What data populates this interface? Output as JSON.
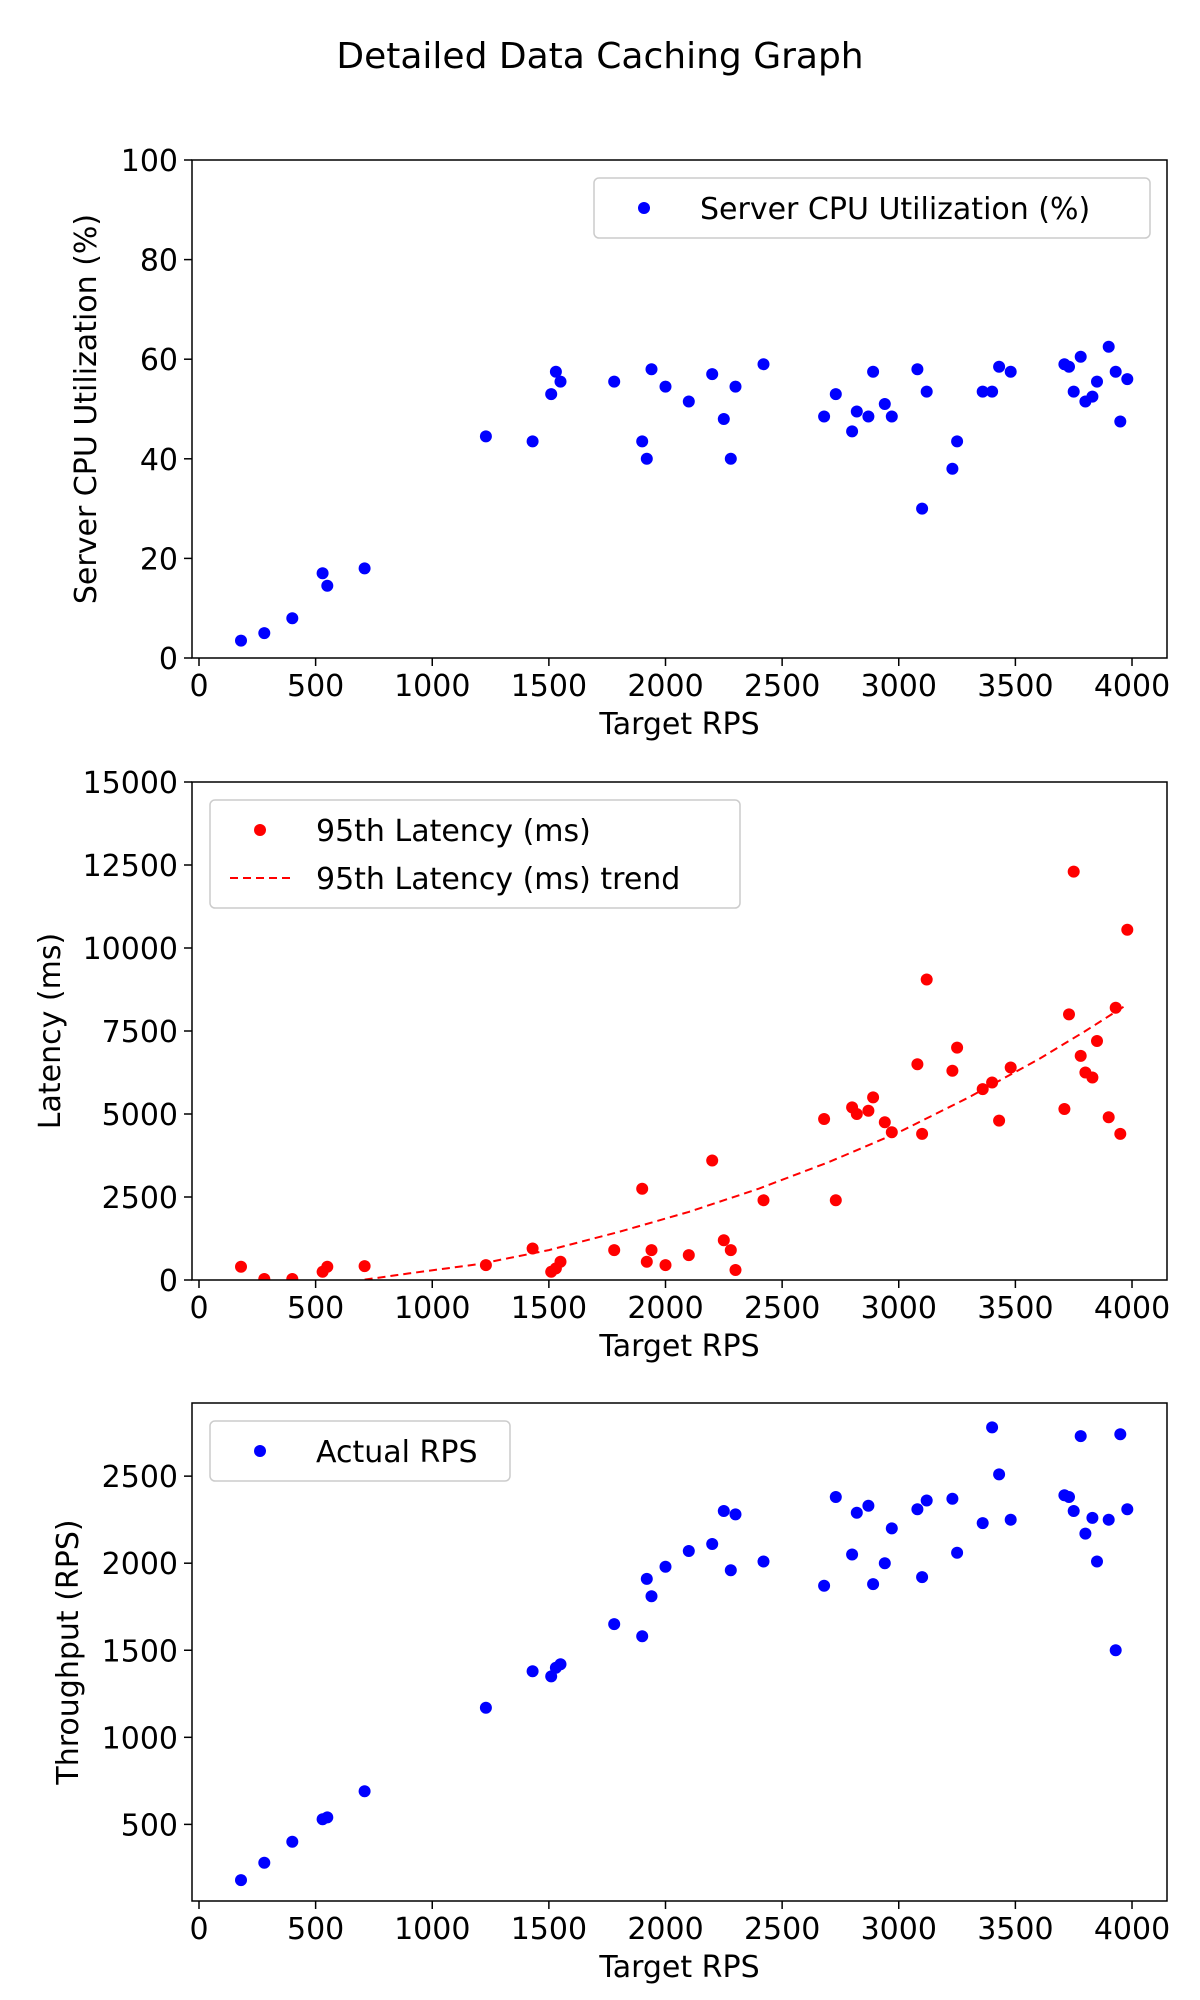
{
  "title": "Detailed Data Caching Graph",
  "chart_data": [
    {
      "type": "scatter",
      "xlabel": "Target RPS",
      "ylabel": "Server CPU Utilization (%)",
      "xlim": [
        -30,
        4150
      ],
      "ylim": [
        0,
        100
      ],
      "xticks": [
        0,
        500,
        1000,
        1500,
        2000,
        2500,
        3000,
        3500,
        4000
      ],
      "yticks": [
        0,
        20,
        40,
        60,
        80,
        100
      ],
      "grid": false,
      "legend": "upper right",
      "series": [
        {
          "name": "Server CPU Utilization (%)",
          "color": "#0000ff",
          "style": "points",
          "points": [
            [
              180,
              3.5
            ],
            [
              280,
              5
            ],
            [
              400,
              8
            ],
            [
              530,
              17
            ],
            [
              550,
              14.5
            ],
            [
              710,
              18
            ],
            [
              1230,
              44.5
            ],
            [
              1430,
              43.5
            ],
            [
              1510,
              53
            ],
            [
              1530,
              57.5
            ],
            [
              1550,
              55.5
            ],
            [
              1780,
              55.5
            ],
            [
              1900,
              43.5
            ],
            [
              1920,
              40
            ],
            [
              1940,
              58
            ],
            [
              2000,
              54.5
            ],
            [
              2100,
              51.5
            ],
            [
              2200,
              57
            ],
            [
              2250,
              48
            ],
            [
              2280,
              40
            ],
            [
              2300,
              54.5
            ],
            [
              2420,
              59
            ],
            [
              2680,
              48.5
            ],
            [
              2730,
              53
            ],
            [
              2800,
              45.5
            ],
            [
              2820,
              49.5
            ],
            [
              2870,
              48.5
            ],
            [
              2890,
              57.5
            ],
            [
              2940,
              51
            ],
            [
              2970,
              48.5
            ],
            [
              3080,
              58
            ],
            [
              3100,
              30
            ],
            [
              3120,
              53.5
            ],
            [
              3230,
              38
            ],
            [
              3250,
              43.5
            ],
            [
              3360,
              53.5
            ],
            [
              3400,
              53.5
            ],
            [
              3430,
              58.5
            ],
            [
              3480,
              57.5
            ],
            [
              3710,
              59
            ],
            [
              3730,
              58.5
            ],
            [
              3750,
              53.5
            ],
            [
              3780,
              60.5
            ],
            [
              3800,
              51.5
            ],
            [
              3830,
              52.5
            ],
            [
              3850,
              55.5
            ],
            [
              3900,
              62.5
            ],
            [
              3930,
              57.5
            ],
            [
              3950,
              47.5
            ],
            [
              3980,
              56
            ]
          ]
        }
      ]
    },
    {
      "type": "scatter",
      "xlabel": "Target RPS",
      "ylabel": "Latency (ms)",
      "xlim": [
        -30,
        4150
      ],
      "ylim": [
        0,
        15000
      ],
      "xticks": [
        0,
        500,
        1000,
        1500,
        2000,
        2500,
        3000,
        3500,
        4000
      ],
      "yticks": [
        0,
        2500,
        5000,
        7500,
        10000,
        12500,
        15000
      ],
      "grid": false,
      "legend": "upper left",
      "series": [
        {
          "name": "95th Latency (ms)",
          "color": "#ff0000",
          "style": "points",
          "points": [
            [
              180,
              400
            ],
            [
              280,
              30
            ],
            [
              400,
              30
            ],
            [
              530,
              250
            ],
            [
              550,
              400
            ],
            [
              710,
              420
            ],
            [
              1230,
              450
            ],
            [
              1430,
              950
            ],
            [
              1510,
              250
            ],
            [
              1530,
              350
            ],
            [
              1550,
              550
            ],
            [
              1780,
              900
            ],
            [
              1900,
              2750
            ],
            [
              1920,
              550
            ],
            [
              1940,
              900
            ],
            [
              2000,
              450
            ],
            [
              2100,
              750
            ],
            [
              2200,
              3600
            ],
            [
              2250,
              1200
            ],
            [
              2280,
              900
            ],
            [
              2300,
              300
            ],
            [
              2420,
              2400
            ],
            [
              2680,
              4850
            ],
            [
              2730,
              2400
            ],
            [
              2800,
              5200
            ],
            [
              2820,
              5000
            ],
            [
              2870,
              5100
            ],
            [
              2890,
              5500
            ],
            [
              2940,
              4750
            ],
            [
              2970,
              4450
            ],
            [
              3080,
              6500
            ],
            [
              3100,
              4400
            ],
            [
              3120,
              9050
            ],
            [
              3230,
              6300
            ],
            [
              3250,
              7000
            ],
            [
              3360,
              5750
            ],
            [
              3400,
              5950
            ],
            [
              3430,
              4800
            ],
            [
              3480,
              6400
            ],
            [
              3710,
              5150
            ],
            [
              3730,
              8000
            ],
            [
              3750,
              12300
            ],
            [
              3780,
              6750
            ],
            [
              3800,
              6250
            ],
            [
              3830,
              6100
            ],
            [
              3850,
              7200
            ],
            [
              3900,
              4900
            ],
            [
              3930,
              8200
            ],
            [
              3950,
              4400
            ],
            [
              3980,
              10550
            ]
          ]
        },
        {
          "name": "95th Latency (ms) trend",
          "color": "#ff0000",
          "style": "dashed-line",
          "points": [
            [
              600,
              -100
            ],
            [
              900,
              200
            ],
            [
              1200,
              480
            ],
            [
              1500,
              900
            ],
            [
              1800,
              1450
            ],
            [
              2100,
              2050
            ],
            [
              2400,
              2750
            ],
            [
              2700,
              3550
            ],
            [
              3000,
              4450
            ],
            [
              3300,
              5500
            ],
            [
              3600,
              6650
            ],
            [
              3800,
              7500
            ],
            [
              3980,
              8300
            ]
          ]
        }
      ]
    },
    {
      "type": "scatter",
      "xlabel": "Target RPS",
      "ylabel": "Throughput (RPS)",
      "xlim": [
        -30,
        4150
      ],
      "ylim": [
        60,
        2920
      ],
      "xticks": [
        0,
        500,
        1000,
        1500,
        2000,
        2500,
        3000,
        3500,
        4000
      ],
      "yticks": [
        500,
        1000,
        1500,
        2000,
        2500
      ],
      "grid": false,
      "legend": "upper left",
      "series": [
        {
          "name": "Actual RPS",
          "color": "#0000ff",
          "style": "points",
          "points": [
            [
              180,
              180
            ],
            [
              280,
              280
            ],
            [
              400,
              400
            ],
            [
              530,
              530
            ],
            [
              550,
              540
            ],
            [
              710,
              690
            ],
            [
              1230,
              1170
            ],
            [
              1430,
              1380
            ],
            [
              1510,
              1350
            ],
            [
              1530,
              1400
            ],
            [
              1550,
              1420
            ],
            [
              1780,
              1650
            ],
            [
              1900,
              1580
            ],
            [
              1920,
              1910
            ],
            [
              1940,
              1810
            ],
            [
              2000,
              1980
            ],
            [
              2100,
              2070
            ],
            [
              2200,
              2110
            ],
            [
              2250,
              2300
            ],
            [
              2280,
              1960
            ],
            [
              2300,
              2280
            ],
            [
              2420,
              2010
            ],
            [
              2680,
              1870
            ],
            [
              2730,
              2380
            ],
            [
              2800,
              2050
            ],
            [
              2820,
              2290
            ],
            [
              2870,
              2330
            ],
            [
              2890,
              1880
            ],
            [
              2940,
              2000
            ],
            [
              2970,
              2200
            ],
            [
              3080,
              2310
            ],
            [
              3100,
              1920
            ],
            [
              3120,
              2360
            ],
            [
              3230,
              2370
            ],
            [
              3250,
              2060
            ],
            [
              3360,
              2230
            ],
            [
              3400,
              2780
            ],
            [
              3430,
              2510
            ],
            [
              3480,
              2250
            ],
            [
              3710,
              2390
            ],
            [
              3730,
              2380
            ],
            [
              3750,
              2300
            ],
            [
              3780,
              2730
            ],
            [
              3800,
              2170
            ],
            [
              3830,
              2260
            ],
            [
              3850,
              2010
            ],
            [
              3900,
              2250
            ],
            [
              3930,
              1500
            ],
            [
              3950,
              2740
            ],
            [
              3980,
              2310
            ]
          ]
        }
      ]
    }
  ]
}
